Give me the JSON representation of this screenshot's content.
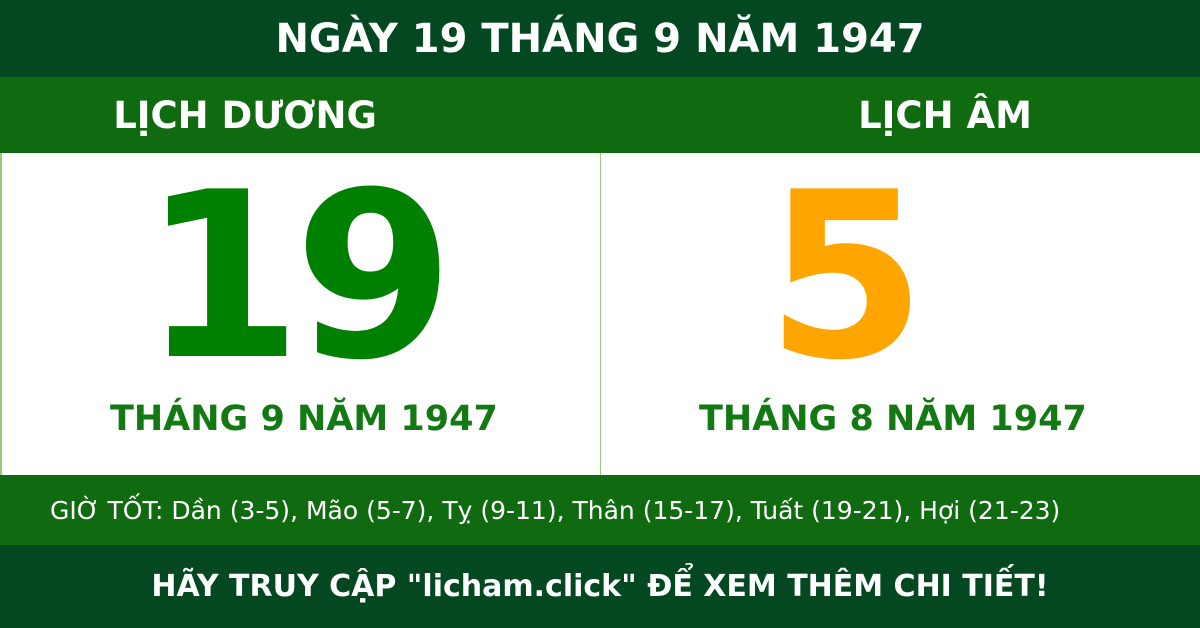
{
  "title": "NGÀY 19 THÁNG 9 NĂM 1947",
  "solar": {
    "heading": "LỊCH DƯƠNG",
    "day": "19",
    "month_year": "THÁNG 9 NĂM 1947"
  },
  "lunar": {
    "heading": "LỊCH ÂM",
    "day": "5",
    "month_year": "THÁNG 8 NĂM 1947"
  },
  "good_hours": "GIỜ TỐT: Dần (3-5), Mão (5-7), Tỵ (9-11), Thân (15-17), Tuất (19-21), Hợi (21-23)",
  "footer": "HÃY TRUY CẬP \"licham.click\" ĐỂ XEM THÊM CHI TIẾT!",
  "colors": {
    "dark_green": "#034821",
    "green": "#106b10",
    "solar_day": "#008000",
    "lunar_day": "#ffa500"
  }
}
